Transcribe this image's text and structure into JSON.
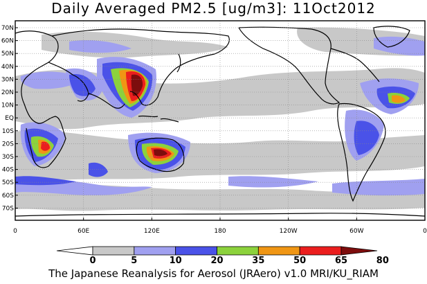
{
  "title": "Daily Averaged PM2.5 [ug/m3]: 11Oct2012",
  "footer": "The Japanese Reanalysis for Aerosol (JRAero) v1.0 MRI/KU_RIAM",
  "lat_labels": [
    "70N",
    "60N",
    "50N",
    "40N",
    "30N",
    "20N",
    "10N",
    "EQ",
    "10S",
    "20S",
    "30S",
    "40S",
    "50S",
    "60S",
    "70S"
  ],
  "lon_labels": [
    "0",
    "60E",
    "120E",
    "180",
    "120W",
    "60W",
    "0"
  ],
  "colorbar": {
    "labels": [
      "0",
      "5",
      "10",
      "20",
      "35",
      "50",
      "65",
      "80"
    ],
    "colors": [
      "#ffffff",
      "#c8c8c8",
      "#a0a0f0",
      "#4a52e8",
      "#8cd23c",
      "#f09614",
      "#eb1e1e",
      "#7d0d0d"
    ]
  }
}
